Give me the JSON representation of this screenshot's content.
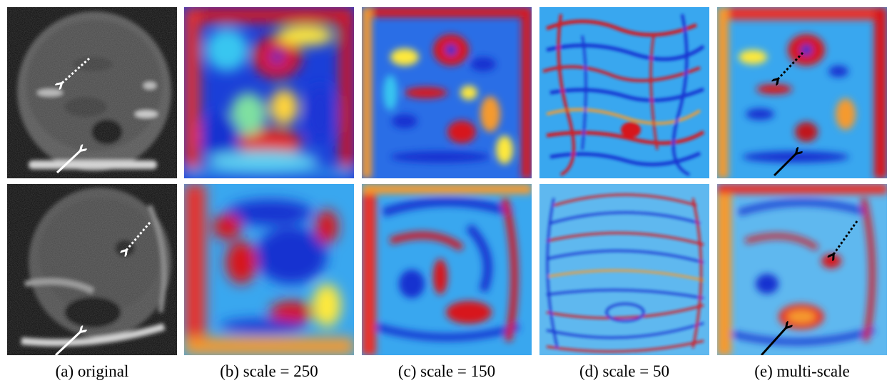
{
  "figure": {
    "columns": [
      {
        "id": "original",
        "caption": "(a) original"
      },
      {
        "id": "s250",
        "caption": "(b) scale = 250"
      },
      {
        "id": "s150",
        "caption": "(c) scale = 150"
      },
      {
        "id": "s50",
        "caption": "(d) scale = 50"
      },
      {
        "id": "multi",
        "caption": "(e) multi-scale"
      }
    ],
    "rows": [
      "top",
      "bottom"
    ],
    "colors": {
      "heat_red": "#d7191c",
      "heat_orange": "#f59a2f",
      "heat_yellow": "#ffe93a",
      "heat_cyan": "#39c6f0",
      "heat_blue": "#1530d0",
      "ultrasound_dark": "#1a1a1a",
      "ultrasound_tissue": "#6e6e6e",
      "arrow_on_ultrasound": "#ffffff",
      "arrow_on_heatmap": "#000000"
    },
    "arrows": [
      {
        "name": "solid-arrow",
        "points_to": "dark cavity"
      },
      {
        "name": "dotted-arrow",
        "points_to": "upper structure"
      }
    ]
  }
}
